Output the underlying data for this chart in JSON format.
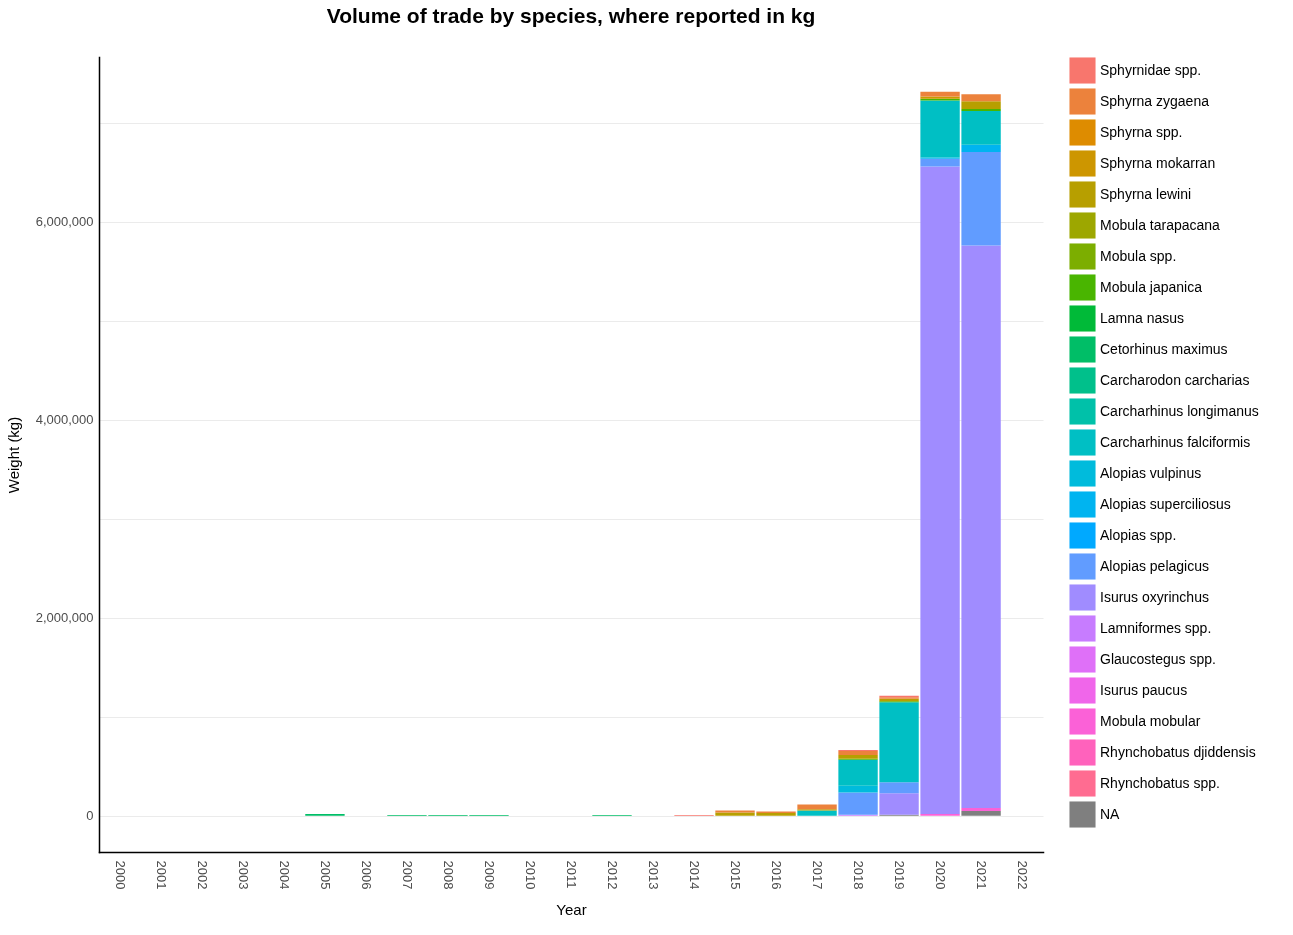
{
  "chart_data": {
    "type": "bar",
    "stacked": true,
    "title": "Volume of trade by species, where reported in kg",
    "xlabel": "Year",
    "ylabel": "Weight (kg)",
    "categories": [
      "2000",
      "2001",
      "2002",
      "2003",
      "2004",
      "2005",
      "2006",
      "2007",
      "2008",
      "2009",
      "2010",
      "2011",
      "2012",
      "2013",
      "2014",
      "2015",
      "2016",
      "2017",
      "2018",
      "2019",
      "2020",
      "2021",
      "2022"
    ],
    "ylim": [
      -365000,
      7665000
    ],
    "yticks": [
      {
        "value": 0,
        "label": "0"
      },
      {
        "value": 1000000,
        "label": null
      },
      {
        "value": 2000000,
        "label": "2,000,000"
      },
      {
        "value": 3000000,
        "label": null
      },
      {
        "value": 4000000,
        "label": "4,000,000"
      },
      {
        "value": 5000000,
        "label": null
      },
      {
        "value": 6000000,
        "label": "6,000,000"
      },
      {
        "value": 7000000,
        "label": null
      }
    ],
    "grid": "y",
    "legend": "right",
    "series": [
      {
        "name": "NA",
        "color": "#7f7f7f",
        "values": [
          null,
          null,
          null,
          null,
          null,
          null,
          null,
          null,
          null,
          null,
          null,
          null,
          null,
          null,
          null,
          null,
          null,
          null,
          null,
          10000,
          null,
          50000,
          null
        ]
      },
      {
        "name": "Rhynchobatus spp.",
        "color": "#ff6c91",
        "values": [
          null,
          null,
          null,
          null,
          null,
          null,
          null,
          null,
          null,
          null,
          null,
          null,
          null,
          null,
          null,
          null,
          null,
          null,
          null,
          null,
          null,
          null,
          null
        ]
      },
      {
        "name": "Rhynchobatus djiddensis",
        "color": "#ff62bc",
        "values": [
          null,
          null,
          null,
          null,
          null,
          null,
          null,
          null,
          null,
          null,
          null,
          null,
          null,
          null,
          null,
          null,
          null,
          null,
          null,
          null,
          null,
          null,
          null
        ]
      },
      {
        "name": "Mobula mobular",
        "color": "#fb61d7",
        "values": [
          null,
          null,
          null,
          null,
          null,
          null,
          null,
          null,
          null,
          null,
          null,
          null,
          null,
          null,
          null,
          null,
          null,
          null,
          null,
          null,
          20000,
          30000,
          null
        ]
      },
      {
        "name": "Isurus paucus",
        "color": "#f066ea",
        "values": [
          null,
          null,
          null,
          null,
          null,
          null,
          null,
          null,
          null,
          null,
          null,
          null,
          null,
          null,
          null,
          null,
          null,
          null,
          null,
          null,
          null,
          null,
          null
        ]
      },
      {
        "name": "Glaucostegus spp.",
        "color": "#df70f8",
        "values": [
          null,
          null,
          null,
          null,
          null,
          null,
          null,
          null,
          null,
          null,
          null,
          null,
          null,
          null,
          null,
          null,
          null,
          null,
          null,
          null,
          null,
          null,
          null
        ]
      },
      {
        "name": "Lamniformes spp.",
        "color": "#c77cff",
        "values": [
          null,
          null,
          null,
          null,
          null,
          null,
          null,
          null,
          null,
          null,
          null,
          null,
          null,
          null,
          null,
          null,
          null,
          null,
          10000,
          null,
          null,
          null,
          null
        ]
      },
      {
        "name": "Isurus oxyrinchus",
        "color": "#a08cff",
        "values": [
          null,
          null,
          null,
          null,
          null,
          null,
          null,
          null,
          null,
          null,
          null,
          null,
          null,
          null,
          null,
          null,
          null,
          null,
          null,
          219000,
          6540000,
          5680000,
          null
        ]
      },
      {
        "name": "Alopias pelagicus",
        "color": "#619cff",
        "values": [
          null,
          null,
          null,
          null,
          null,
          null,
          null,
          null,
          null,
          null,
          null,
          null,
          null,
          null,
          null,
          null,
          null,
          null,
          226000,
          111000,
          77000,
          946000,
          null
        ]
      },
      {
        "name": "Alopias spp.",
        "color": "#00a9ff",
        "values": [
          null,
          null,
          null,
          null,
          null,
          null,
          null,
          null,
          null,
          null,
          null,
          null,
          null,
          null,
          null,
          null,
          null,
          null,
          null,
          null,
          null,
          null,
          null
        ]
      },
      {
        "name": "Alopias superciliosus",
        "color": "#00b4f0",
        "values": [
          null,
          null,
          null,
          null,
          null,
          null,
          null,
          null,
          null,
          null,
          null,
          null,
          null,
          null,
          null,
          null,
          null,
          null,
          null,
          null,
          13000,
          73000,
          null
        ]
      },
      {
        "name": "Alopias vulpinus",
        "color": "#00bbdc",
        "values": [
          null,
          null,
          null,
          null,
          null,
          null,
          null,
          null,
          null,
          null,
          null,
          null,
          null,
          null,
          null,
          null,
          null,
          null,
          67000,
          null,
          null,
          null,
          null
        ]
      },
      {
        "name": "Carcharhinus falciformis",
        "color": "#00bfc4",
        "values": [
          null,
          null,
          null,
          null,
          null,
          null,
          null,
          null,
          null,
          null,
          null,
          null,
          null,
          null,
          null,
          null,
          null,
          54000,
          263000,
          808000,
          576000,
          340000,
          null
        ]
      },
      {
        "name": "Carcharhinus longimanus",
        "color": "#00c1a9",
        "values": [
          null,
          null,
          null,
          null,
          null,
          null,
          null,
          null,
          null,
          null,
          null,
          null,
          null,
          null,
          null,
          null,
          null,
          null,
          null,
          null,
          null,
          null,
          null
        ]
      },
      {
        "name": "Carcharodon carcharias",
        "color": "#00c08b",
        "values": [
          null,
          null,
          null,
          null,
          null,
          null,
          null,
          null,
          null,
          null,
          null,
          null,
          null,
          null,
          null,
          null,
          null,
          null,
          null,
          null,
          null,
          null,
          null
        ]
      },
      {
        "name": "Cetorhinus maximus",
        "color": "#00be67",
        "values": [
          null,
          null,
          null,
          null,
          null,
          20000,
          null,
          8000,
          8000,
          8000,
          null,
          null,
          8000,
          null,
          null,
          null,
          null,
          null,
          null,
          null,
          null,
          null,
          null
        ]
      },
      {
        "name": "Lamna nasus",
        "color": "#00ba38",
        "values": [
          null,
          null,
          null,
          null,
          null,
          null,
          null,
          null,
          null,
          null,
          null,
          null,
          null,
          null,
          null,
          null,
          null,
          null,
          null,
          null,
          null,
          null,
          null
        ]
      },
      {
        "name": "Mobula japanica",
        "color": "#49b500",
        "values": [
          null,
          null,
          null,
          null,
          null,
          null,
          null,
          null,
          null,
          null,
          null,
          null,
          null,
          null,
          null,
          null,
          null,
          null,
          10000,
          10000,
          17000,
          20000,
          null
        ]
      },
      {
        "name": "Mobula spp.",
        "color": "#7cae00",
        "values": [
          null,
          null,
          null,
          null,
          null,
          null,
          null,
          null,
          null,
          null,
          null,
          null,
          null,
          null,
          null,
          null,
          null,
          null,
          null,
          null,
          null,
          null,
          null
        ]
      },
      {
        "name": "Mobula tarapacana",
        "color": "#9da700",
        "values": [
          null,
          null,
          null,
          null,
          null,
          null,
          null,
          null,
          null,
          null,
          null,
          null,
          null,
          null,
          null,
          null,
          null,
          null,
          null,
          null,
          null,
          null,
          null
        ]
      },
      {
        "name": "Sphyrna lewini",
        "color": "#b79f00",
        "values": [
          null,
          null,
          null,
          null,
          null,
          null,
          null,
          null,
          null,
          null,
          null,
          null,
          null,
          null,
          null,
          33000,
          28000,
          13000,
          40000,
          25000,
          null,
          80000,
          null
        ]
      },
      {
        "name": "Sphyrna mokarran",
        "color": "#cd9600",
        "values": [
          null,
          null,
          null,
          null,
          null,
          null,
          null,
          null,
          null,
          null,
          null,
          null,
          null,
          null,
          null,
          null,
          null,
          null,
          null,
          null,
          23000,
          null,
          null
        ]
      },
      {
        "name": "Sphyrna spp.",
        "color": "#de8c00",
        "values": [
          null,
          null,
          null,
          null,
          null,
          null,
          null,
          null,
          null,
          null,
          null,
          null,
          null,
          null,
          null,
          null,
          null,
          null,
          null,
          null,
          null,
          null,
          null
        ]
      },
      {
        "name": "Sphyrna zygaena",
        "color": "#ec823c",
        "values": [
          null,
          null,
          null,
          null,
          null,
          null,
          null,
          null,
          null,
          null,
          null,
          null,
          null,
          null,
          null,
          20000,
          15000,
          47000,
          40000,
          15000,
          47000,
          70000,
          null
        ]
      },
      {
        "name": "Sphyrnidae spp.",
        "color": "#f8766d",
        "values": [
          null,
          null,
          null,
          null,
          null,
          null,
          null,
          null,
          null,
          null,
          null,
          null,
          null,
          null,
          8000,
          null,
          null,
          null,
          10000,
          15000,
          null,
          null,
          null
        ]
      }
    ]
  }
}
